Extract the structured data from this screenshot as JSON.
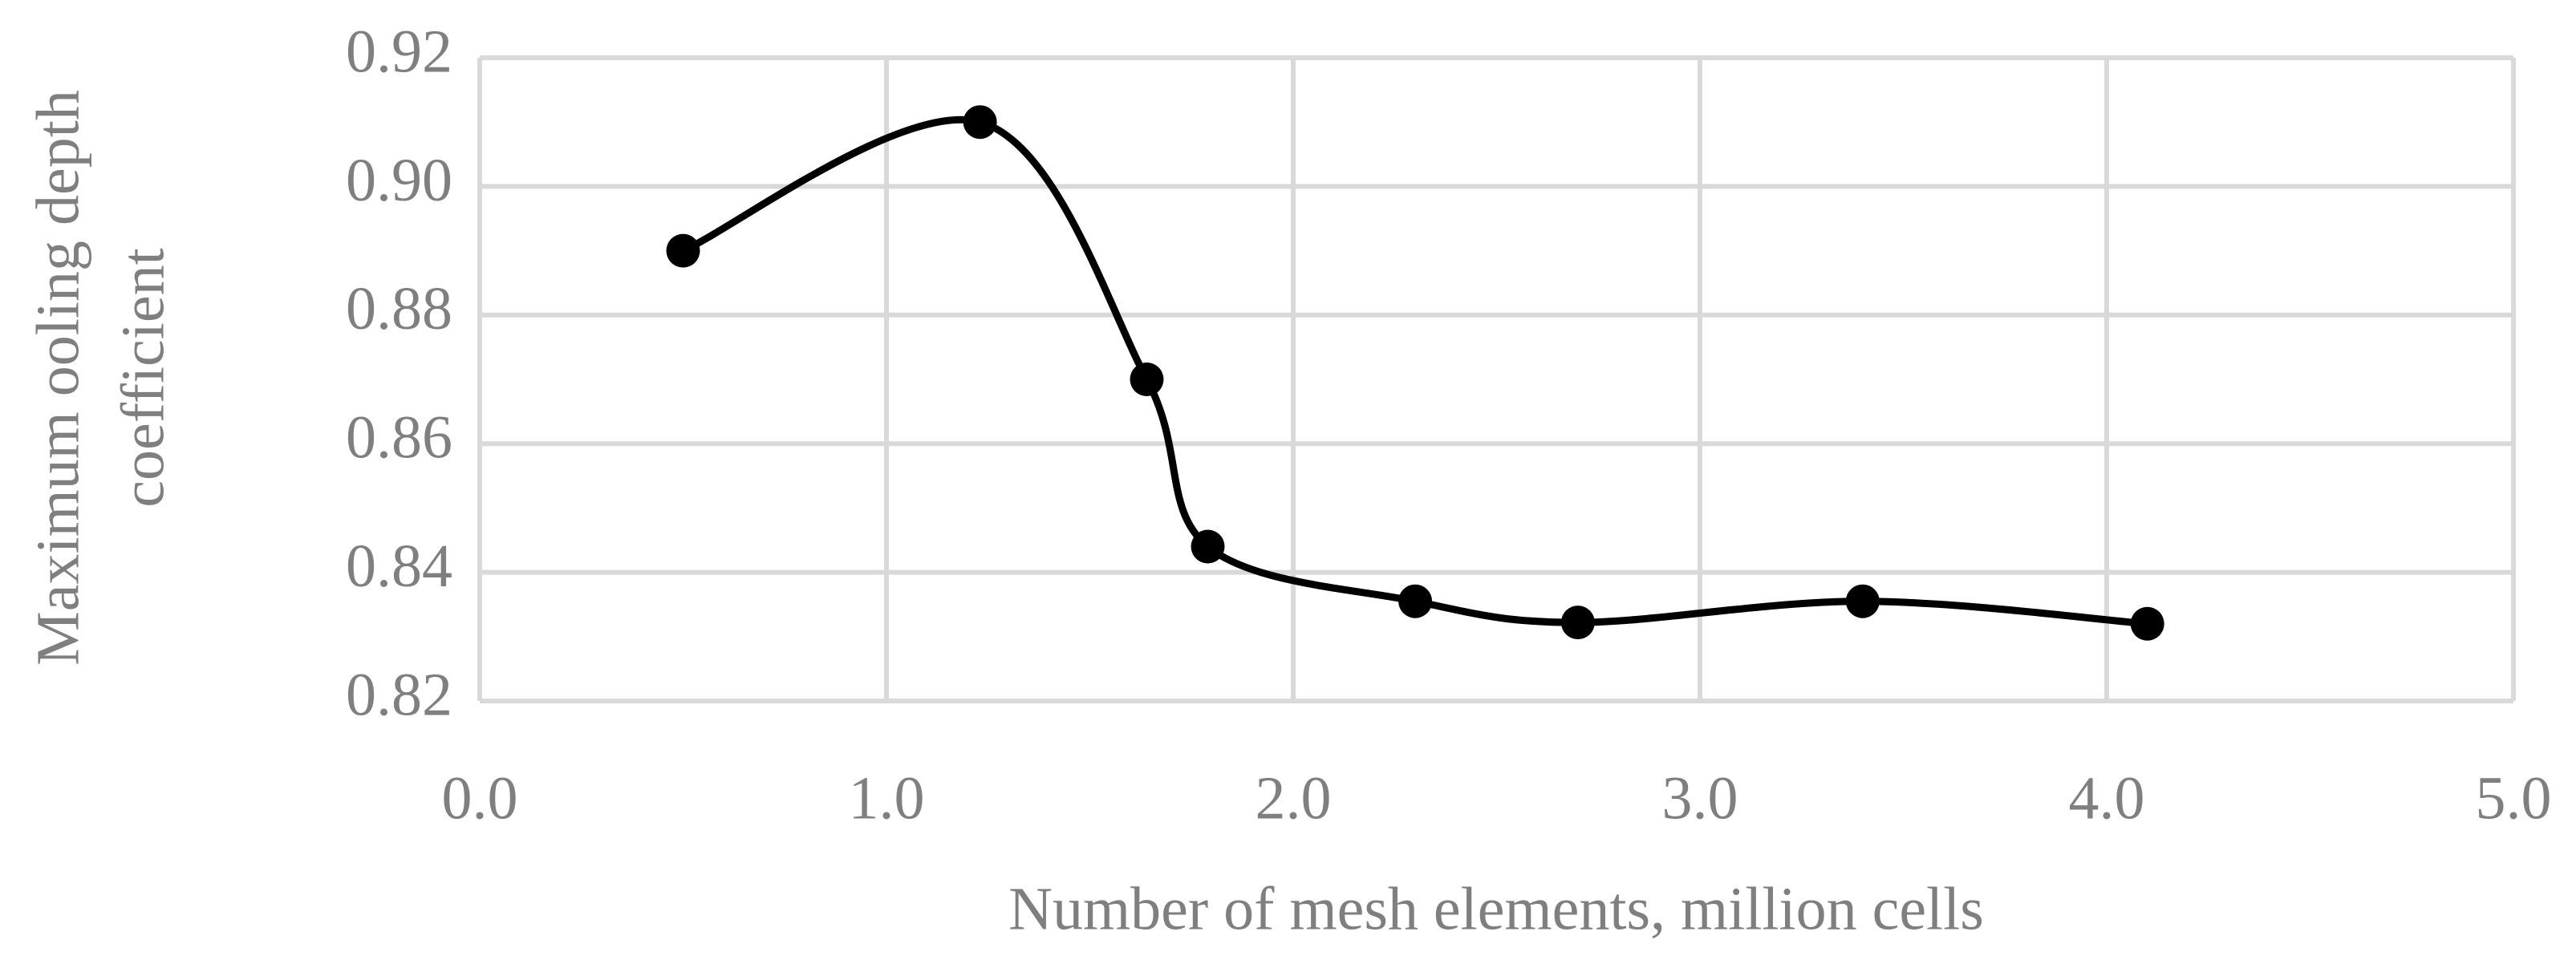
{
  "chart_data": {
    "type": "line",
    "x_label": "Number of mesh elements, million cells",
    "y_label": [
      "Maximum ooling depth",
      "coefficient"
    ],
    "x": [
      0.5,
      1.23,
      1.64,
      1.79,
      2.3,
      2.7,
      3.4,
      4.1
    ],
    "series": [
      {
        "color": "#000000",
        "values": [
          0.89,
          0.91,
          0.87,
          0.844,
          0.8355,
          0.8322,
          0.8355,
          0.832
        ]
      }
    ],
    "xlim": [
      0,
      5
    ],
    "xticks": [
      {
        "value": 0,
        "label": "0.0"
      },
      {
        "value": 1,
        "label": "1.0"
      },
      {
        "value": 2,
        "label": "2.0"
      },
      {
        "value": 3,
        "label": "3.0"
      },
      {
        "value": 4,
        "label": "4.0"
      },
      {
        "value": 5,
        "label": "5.0"
      }
    ],
    "ylim": [
      0.82,
      0.92
    ],
    "yticks": [
      0.82,
      0.84,
      0.86,
      0.88,
      {
        "value": 0.9,
        "label": "0.90"
      },
      0.92
    ],
    "grid": true,
    "smooth": true
  }
}
